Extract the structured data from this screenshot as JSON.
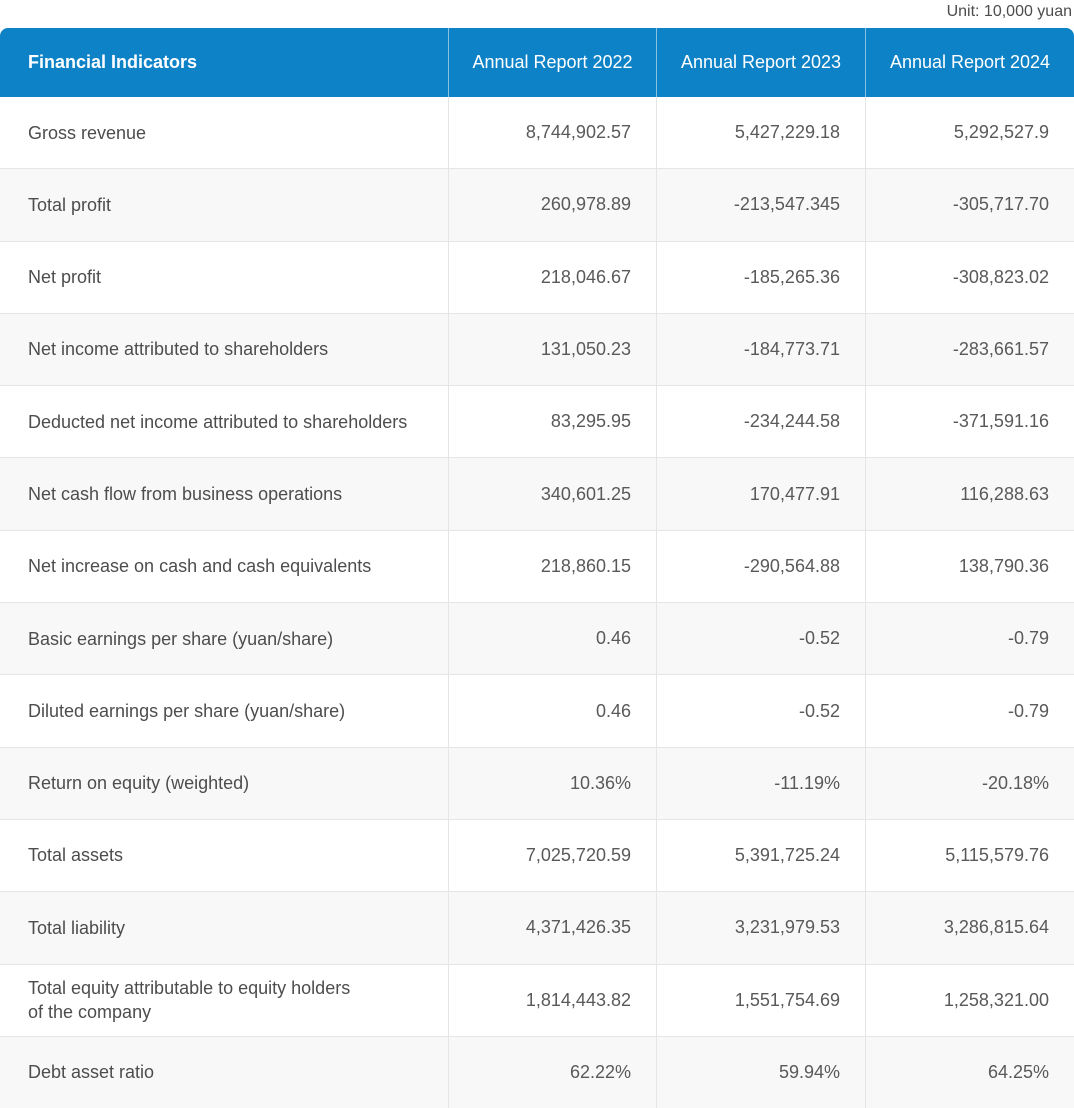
{
  "chart_data": {
    "type": "table",
    "annotation": "Unit: 10,000 yuan",
    "columns": [
      "Financial Indicators",
      "Annual Report 2022",
      "Annual Report 2023",
      "Annual Report 2024"
    ],
    "rows": [
      [
        "Gross revenue",
        "8,744,902.57",
        "5,427,229.18",
        "5,292,527.9"
      ],
      [
        "Total profit",
        "260,978.89",
        "-213,547.345",
        "-305,717.70"
      ],
      [
        "Net profit",
        "218,046.67",
        "-185,265.36",
        "-308,823.02"
      ],
      [
        "Net income attributed to shareholders",
        "131,050.23",
        "-184,773.71",
        "-283,661.57"
      ],
      [
        "Deducted net income attributed to shareholders",
        "83,295.95",
        "-234,244.58",
        "-371,591.16"
      ],
      [
        "Net cash flow from business operations",
        "340,601.25",
        "170,477.91",
        "116,288.63"
      ],
      [
        "Net increase on cash and cash equivalents",
        "218,860.15",
        "-290,564.88",
        "138,790.36"
      ],
      [
        "Basic earnings per share (yuan/share)",
        "0.46",
        "-0.52",
        "-0.79"
      ],
      [
        "Diluted earnings per share (yuan/share)",
        "0.46",
        "-0.52",
        "-0.79"
      ],
      [
        "Return on equity (weighted)",
        "10.36%",
        "-11.19%",
        "-20.18%"
      ],
      [
        "Total assets",
        "7,025,720.59",
        "5,391,725.24",
        "5,115,579.76"
      ],
      [
        "Total liability",
        "4,371,426.35",
        "3,231,979.53",
        "3,286,815.64"
      ],
      [
        "Total equity attributable to equity holders\nof the company",
        "1,814,443.82",
        "1,551,754.69",
        "1,258,321.00"
      ],
      [
        "Debt asset ratio",
        "62.22%",
        "59.94%",
        "64.25%"
      ]
    ]
  },
  "colors": {
    "header-bg": "#0e82c7",
    "header-text": "#ffffff",
    "header-divider": "rgba(255,255,255,0.5)",
    "row-bg": "#ffffff",
    "row-alt-bg": "#f8f8f8",
    "grid-line": "#e5e5e5",
    "label-text": "#4d4d4d",
    "value-text": "#595959",
    "unit-text": "#4d4d4d"
  }
}
